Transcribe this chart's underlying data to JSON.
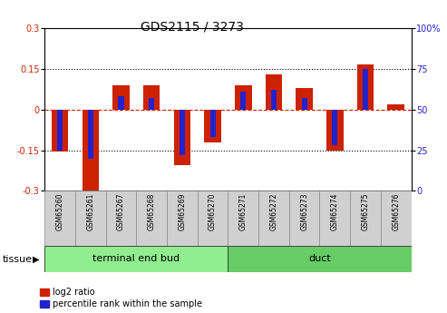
{
  "title": "GDS2115 / 3273",
  "samples": [
    "GSM65260",
    "GSM65261",
    "GSM65267",
    "GSM65268",
    "GSM65269",
    "GSM65270",
    "GSM65271",
    "GSM65272",
    "GSM65273",
    "GSM65274",
    "GSM65275",
    "GSM65276"
  ],
  "log2_ratio": [
    -0.155,
    -0.305,
    0.09,
    0.09,
    -0.205,
    -0.12,
    0.09,
    0.13,
    0.08,
    -0.15,
    0.165,
    0.02
  ],
  "percentile": [
    25,
    20,
    58,
    57,
    22,
    33,
    61,
    62,
    57,
    28,
    75,
    50
  ],
  "groups": [
    {
      "label": "terminal end bud",
      "indices": [
        0,
        5
      ],
      "color": "#90EE90"
    },
    {
      "label": "duct",
      "indices": [
        6,
        11
      ],
      "color": "#66CC66"
    }
  ],
  "tissue_label": "tissue",
  "ylim_left": [
    -0.3,
    0.3
  ],
  "ylim_right": [
    0,
    100
  ],
  "yticks_left": [
    -0.3,
    -0.15,
    0.0,
    0.15,
    0.3
  ],
  "yticks_right": [
    0,
    25,
    50,
    75,
    100
  ],
  "bar_color_red": "#CC2200",
  "bar_color_blue": "#2222CC",
  "red_bar_width": 0.55,
  "blue_bar_width": 0.18,
  "dotted_lines_black": [
    0.15,
    -0.15
  ],
  "zero_line_color": "#CC2200",
  "legend_red": "log2 ratio",
  "legend_blue": "percentile rank within the sample",
  "bg_color": "#FFFFFF",
  "plot_bg": "#FFFFFF",
  "title_fontsize": 10,
  "tick_fontsize": 7,
  "sample_fontsize": 5.5,
  "group_fontsize": 8,
  "legend_fontsize": 7,
  "tissue_fontsize": 8,
  "sample_box_color": "#D0D0D0",
  "sample_box_edge": "#888888"
}
